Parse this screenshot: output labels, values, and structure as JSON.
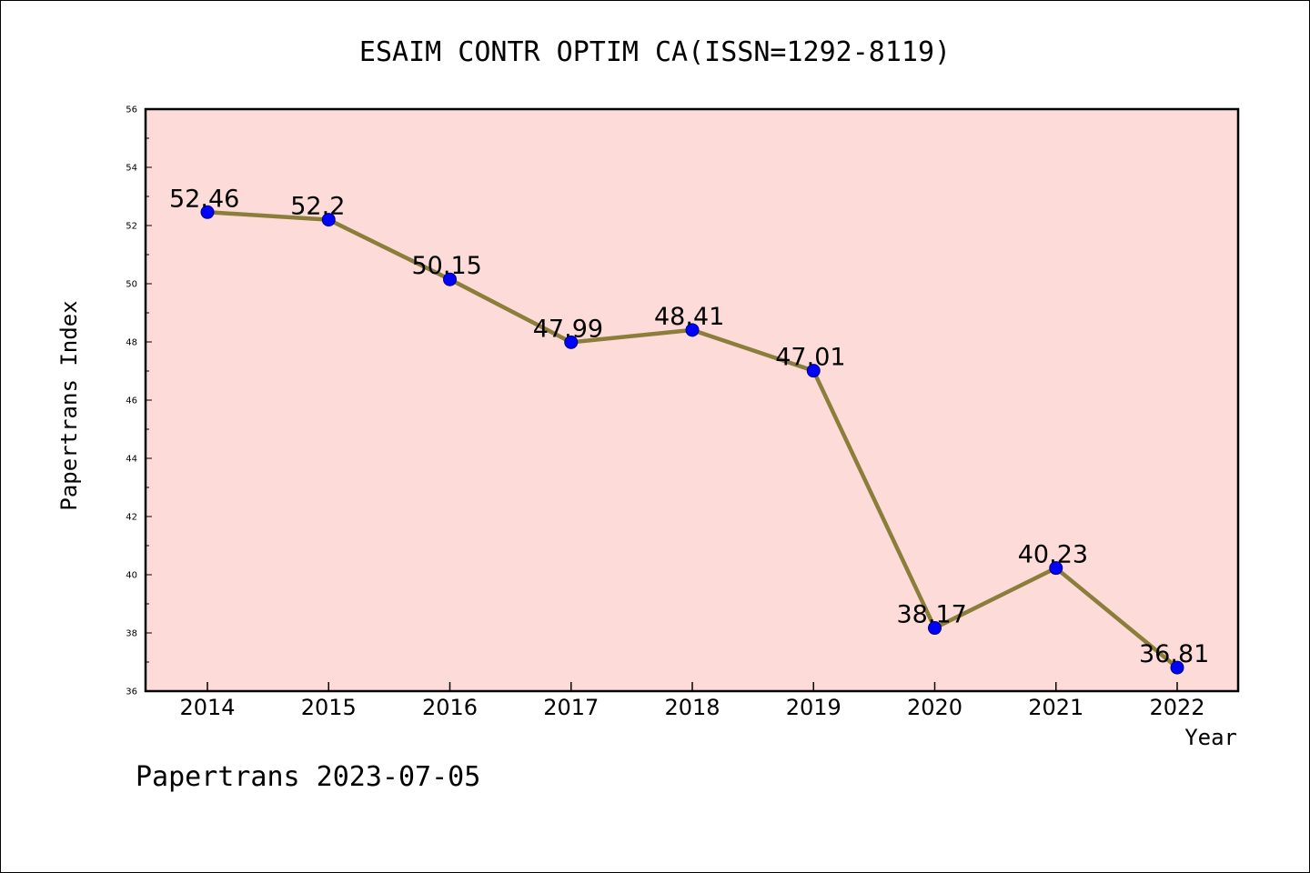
{
  "title": "ESAIM CONTR OPTIM CA(ISSN=1292-8119)",
  "footer": "Papertrans 2023-07-05",
  "colors": {
    "plot_background": "#fddbd8",
    "line": "#8b7d3a",
    "marker": "#0000ff",
    "marker_edge": "#00007a",
    "axis": "#000000"
  },
  "chart_data": {
    "type": "line",
    "title": "ESAIM CONTR OPTIM CA(ISSN=1292-8119)",
    "xlabel": "Year",
    "ylabel": "Papertrans Index",
    "categories": [
      "2014",
      "2015",
      "2016",
      "2017",
      "2018",
      "2019",
      "2020",
      "2021",
      "2022"
    ],
    "series": [
      {
        "values": [
          52.46,
          52.2,
          50.15,
          47.99,
          48.41,
          47.01,
          38.17,
          40.23,
          36.81
        ],
        "labels": [
          "52.46",
          "52.2",
          "50.15",
          "47.99",
          "48.41",
          "47.01",
          "38.17",
          "40.23",
          "36.81"
        ]
      }
    ],
    "ylim": [
      36,
      56
    ],
    "yticks": [
      "36",
      "38",
      "40",
      "42",
      "44",
      "46",
      "48",
      "50",
      "52",
      "54",
      "56"
    ],
    "grid": false,
    "legend": "none"
  }
}
